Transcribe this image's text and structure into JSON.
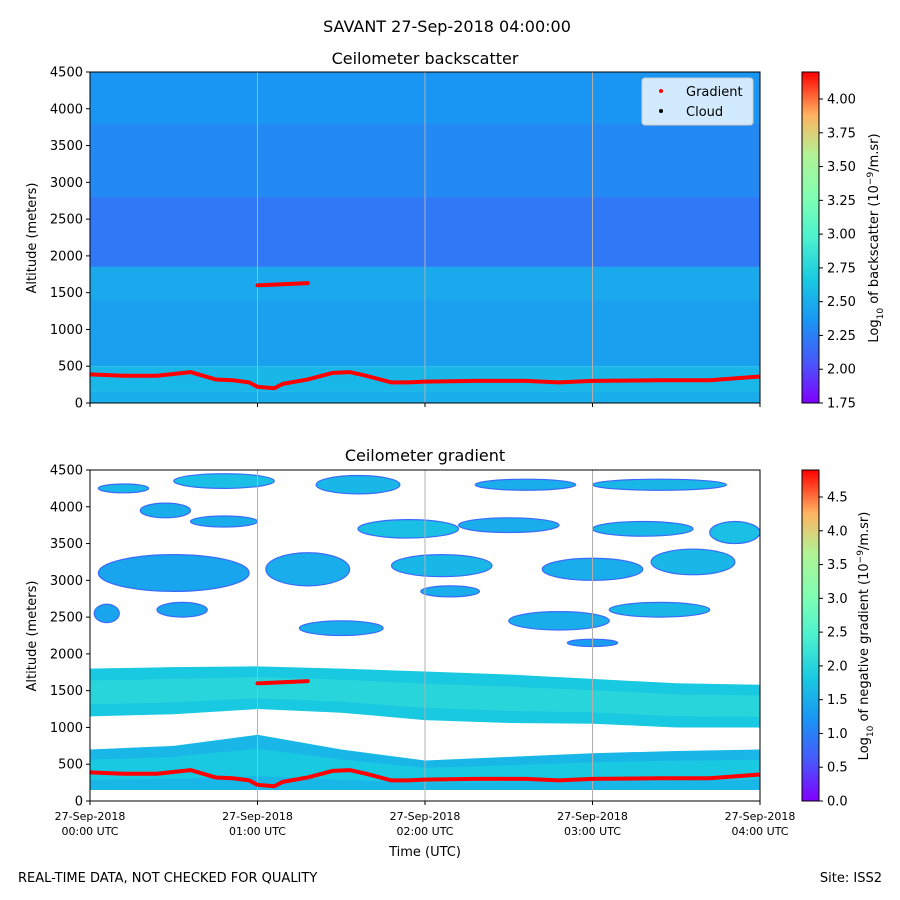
{
  "figure": {
    "suptitle": "SAVANT 27-Sep-2018 04:00:00",
    "footer_left": "REAL-TIME DATA, NOT CHECKED FOR QUALITY",
    "footer_right": "Site: ISS2"
  },
  "colors": {
    "gradient_marker": "#ff0000",
    "cloud_marker": "#000000",
    "grid": "#b0b0b0"
  },
  "chart_data": [
    {
      "type": "heatmap",
      "title": "Ceilometer backscatter",
      "xlabel": "",
      "ylabel": "Altitude (meters)",
      "xlim": [
        0,
        4
      ],
      "ylim": [
        0,
        4500
      ],
      "yticks": [
        0,
        500,
        1000,
        1500,
        2000,
        2500,
        3000,
        3500,
        4000,
        4500
      ],
      "xticks": [
        0,
        1,
        2,
        3,
        4
      ],
      "grid": "vertical",
      "colorbar": {
        "label_main": "Log",
        "label_sub": "10",
        "label_rest": " of backscatter (10",
        "label_sup": "−9",
        "label_end": "/m.sr)",
        "vmin": 1.75,
        "vmax": 4.2,
        "ticks": [
          "1.75",
          "2.00",
          "2.25",
          "2.50",
          "2.75",
          "3.00",
          "3.25",
          "3.50",
          "3.75",
          "4.00"
        ],
        "tick_values": [
          1.75,
          2.0,
          2.25,
          2.5,
          2.75,
          3.0,
          3.25,
          3.5,
          3.75,
          4.0
        ]
      },
      "legend": {
        "placement": "top-right",
        "entries": [
          "Gradient",
          "Cloud"
        ]
      },
      "bands": [
        {
          "ymin": 0,
          "ymax": 150,
          "value": 2.5
        },
        {
          "ymin": 150,
          "ymax": 500,
          "value": 2.55
        },
        {
          "ymin": 500,
          "ymax": 1400,
          "value": 2.42
        },
        {
          "ymin": 1400,
          "ymax": 1850,
          "value": 2.47
        },
        {
          "ymin": 1850,
          "ymax": 2800,
          "value": 2.22
        },
        {
          "ymin": 2800,
          "ymax": 3800,
          "value": 2.3
        },
        {
          "ymin": 3800,
          "ymax": 4500,
          "value": 2.36
        }
      ],
      "gradient_series": {
        "name": "Gradient",
        "time_hours": [
          0,
          0.2,
          0.4,
          0.6,
          0.75,
          0.85,
          0.95,
          1.0,
          1.1,
          1.15,
          1.3,
          1.45,
          1.55,
          1.65,
          1.8,
          1.9,
          2.0,
          2.3,
          2.6,
          2.8,
          3.0,
          3.4,
          3.7,
          4.0
        ],
        "altitude_m": [
          390,
          370,
          370,
          420,
          320,
          310,
          280,
          220,
          200,
          260,
          320,
          410,
          420,
          370,
          280,
          280,
          290,
          300,
          300,
          280,
          300,
          310,
          310,
          360
        ]
      },
      "gradient_upper": {
        "time_hours": [
          1.0,
          1.05,
          1.1,
          1.15,
          1.2,
          1.25,
          1.3
        ],
        "altitude_m": [
          1600,
          1605,
          1610,
          1615,
          1620,
          1625,
          1630
        ]
      }
    },
    {
      "type": "heatmap",
      "title": "Ceilometer gradient",
      "xlabel": "Time (UTC)",
      "ylabel": "Altitude (meters)",
      "xlim": [
        0,
        4
      ],
      "ylim": [
        0,
        4500
      ],
      "yticks": [
        0,
        500,
        1000,
        1500,
        2000,
        2500,
        3000,
        3500,
        4000,
        4500
      ],
      "xticks": [
        0,
        1,
        2,
        3,
        4
      ],
      "xtick_labels": [
        [
          "27-Sep-2018",
          "00:00 UTC"
        ],
        [
          "27-Sep-2018",
          "01:00 UTC"
        ],
        [
          "27-Sep-2018",
          "02:00 UTC"
        ],
        [
          "27-Sep-2018",
          "03:00 UTC"
        ],
        [
          "27-Sep-2018",
          "04:00 UTC"
        ]
      ],
      "grid": "vertical",
      "colorbar": {
        "label_main": "Log",
        "label_sub": "10",
        "label_rest": " of negative gradient (10",
        "label_sup": "−9",
        "label_end": "/m.sr)",
        "vmin": 0,
        "vmax": 4.9,
        "ticks": [
          "0.0",
          "0.5",
          "1.0",
          "1.5",
          "2.0",
          "2.5",
          "3.0",
          "3.5",
          "4.0",
          "4.5"
        ],
        "tick_values": [
          0,
          0.5,
          1.0,
          1.5,
          2.0,
          2.5,
          3.0,
          3.5,
          4.0,
          4.5
        ]
      },
      "main_band": {
        "time_hours": [
          0,
          0.5,
          1.0,
          1.5,
          2.0,
          2.5,
          3.0,
          3.5,
          4.0
        ],
        "lower_m": [
          1150,
          1180,
          1250,
          1200,
          1100,
          1060,
          1050,
          1000,
          1000
        ],
        "upper_m": [
          1800,
          1820,
          1830,
          1800,
          1760,
          1720,
          1660,
          1600,
          1580
        ],
        "value": 1.8
      },
      "low_band": {
        "time_hours": [
          0,
          0.5,
          1.0,
          1.5,
          2.0,
          2.5,
          3.0,
          3.5,
          4.0
        ],
        "lower_m": [
          150,
          150,
          150,
          150,
          150,
          150,
          150,
          150,
          150
        ],
        "upper_m": [
          700,
          750,
          900,
          700,
          550,
          600,
          650,
          680,
          700
        ],
        "value": 1.6
      },
      "patches": [
        {
          "t": 0.2,
          "alt": 4250,
          "w": 0.3,
          "h": 120,
          "value": 1.6
        },
        {
          "t": 0.8,
          "alt": 4350,
          "w": 0.6,
          "h": 200,
          "value": 1.7
        },
        {
          "t": 1.6,
          "alt": 4300,
          "w": 0.5,
          "h": 250,
          "value": 1.6
        },
        {
          "t": 2.6,
          "alt": 4300,
          "w": 0.6,
          "h": 150,
          "value": 1.5
        },
        {
          "t": 3.4,
          "alt": 4300,
          "w": 0.8,
          "h": 150,
          "value": 1.6
        },
        {
          "t": 0.45,
          "alt": 3950,
          "w": 0.3,
          "h": 200,
          "value": 1.5
        },
        {
          "t": 0.8,
          "alt": 3800,
          "w": 0.4,
          "h": 150,
          "value": 1.5
        },
        {
          "t": 1.9,
          "alt": 3700,
          "w": 0.6,
          "h": 250,
          "value": 1.7
        },
        {
          "t": 2.5,
          "alt": 3750,
          "w": 0.6,
          "h": 200,
          "value": 1.5
        },
        {
          "t": 3.3,
          "alt": 3700,
          "w": 0.6,
          "h": 200,
          "value": 1.6
        },
        {
          "t": 3.85,
          "alt": 3650,
          "w": 0.3,
          "h": 300,
          "value": 1.7
        },
        {
          "t": 0.5,
          "alt": 3100,
          "w": 0.9,
          "h": 500,
          "value": 1.4
        },
        {
          "t": 1.3,
          "alt": 3150,
          "w": 0.5,
          "h": 450,
          "value": 1.5
        },
        {
          "t": 2.1,
          "alt": 3200,
          "w": 0.6,
          "h": 300,
          "value": 1.6
        },
        {
          "t": 3.0,
          "alt": 3150,
          "w": 0.6,
          "h": 300,
          "value": 1.5
        },
        {
          "t": 3.6,
          "alt": 3250,
          "w": 0.5,
          "h": 350,
          "value": 1.6
        },
        {
          "t": 0.1,
          "alt": 2550,
          "w": 0.15,
          "h": 250,
          "value": 1.4
        },
        {
          "t": 0.55,
          "alt": 2600,
          "w": 0.3,
          "h": 200,
          "value": 1.4
        },
        {
          "t": 1.5,
          "alt": 2350,
          "w": 0.5,
          "h": 200,
          "value": 1.5
        },
        {
          "t": 2.15,
          "alt": 2850,
          "w": 0.35,
          "h": 150,
          "value": 1.5
        },
        {
          "t": 2.8,
          "alt": 2450,
          "w": 0.6,
          "h": 250,
          "value": 1.5
        },
        {
          "t": 3.4,
          "alt": 2600,
          "w": 0.6,
          "h": 200,
          "value": 1.6
        },
        {
          "t": 3.0,
          "alt": 2150,
          "w": 0.3,
          "h": 100,
          "value": 1.3
        }
      ],
      "gradient_series": {
        "name": "Gradient",
        "time_hours": [
          0,
          0.2,
          0.4,
          0.6,
          0.75,
          0.85,
          0.95,
          1.0,
          1.1,
          1.15,
          1.3,
          1.45,
          1.55,
          1.65,
          1.8,
          1.9,
          2.0,
          2.3,
          2.6,
          2.8,
          3.0,
          3.4,
          3.7,
          4.0
        ],
        "altitude_m": [
          390,
          370,
          370,
          420,
          320,
          310,
          280,
          220,
          200,
          260,
          320,
          410,
          420,
          370,
          280,
          280,
          290,
          300,
          300,
          280,
          300,
          310,
          310,
          360
        ]
      },
      "gradient_upper": {
        "time_hours": [
          1.0,
          1.05,
          1.1,
          1.15,
          1.2,
          1.25,
          1.3
        ],
        "altitude_m": [
          1600,
          1605,
          1610,
          1615,
          1620,
          1625,
          1630
        ]
      }
    }
  ]
}
